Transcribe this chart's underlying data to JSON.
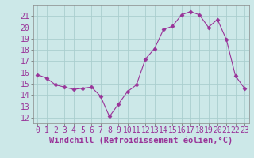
{
  "x": [
    0,
    1,
    2,
    3,
    4,
    5,
    6,
    7,
    8,
    9,
    10,
    11,
    12,
    13,
    14,
    15,
    16,
    17,
    18,
    19,
    20,
    21,
    22,
    23
  ],
  "y": [
    15.8,
    15.5,
    14.9,
    14.7,
    14.5,
    14.6,
    14.7,
    13.9,
    12.1,
    13.2,
    14.3,
    14.9,
    17.2,
    18.1,
    19.8,
    20.1,
    21.1,
    21.4,
    21.1,
    20.0,
    20.7,
    18.9,
    15.7,
    14.6
  ],
  "line_color": "#993399",
  "marker": "D",
  "marker_size": 2.5,
  "bg_color": "#cce8e8",
  "grid_color": "#aacece",
  "xlabel": "Windchill (Refroidissement éolien,°C)",
  "xlabel_fontsize": 7.5,
  "tick_fontsize": 7,
  "ylim": [
    11.5,
    22.0
  ],
  "xlim": [
    -0.5,
    23.5
  ],
  "yticks": [
    12,
    13,
    14,
    15,
    16,
    17,
    18,
    19,
    20,
    21
  ],
  "xticks": [
    0,
    1,
    2,
    3,
    4,
    5,
    6,
    7,
    8,
    9,
    10,
    11,
    12,
    13,
    14,
    15,
    16,
    17,
    18,
    19,
    20,
    21,
    22,
    23
  ]
}
